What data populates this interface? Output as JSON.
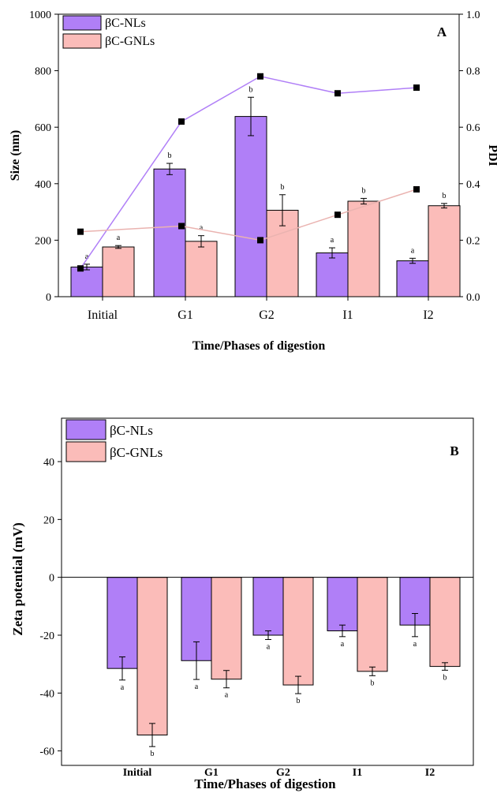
{
  "chart_data": [
    {
      "type": "bar",
      "panel_label": "A",
      "title": "",
      "xlabel": "Time/Phases of digestion",
      "ylabel": "Size (nm)",
      "y2label": "PDI",
      "categories": [
        "Initial",
        "G1",
        "G2",
        "I1",
        "I2"
      ],
      "ylim": [
        0,
        1000
      ],
      "y2lim": [
        0,
        1.0
      ],
      "yticks": [
        "0",
        "200",
        "400",
        "600",
        "800",
        "1000"
      ],
      "y2ticks": [
        "0.0",
        "0.2",
        "0.4",
        "0.6",
        "0.8",
        "1.0"
      ],
      "legend_position": "top-left",
      "series": [
        {
          "name": "βC-NLs",
          "color": "#b07ff7",
          "values": [
            105,
            452,
            638,
            155,
            127
          ],
          "errors": [
            10,
            20,
            68,
            18,
            9
          ],
          "letters": [
            "a",
            "b",
            "b",
            "a",
            "a"
          ]
        },
        {
          "name": "βC-GNLs",
          "color": "#fbbcb9",
          "values": [
            176,
            196,
            306,
            338,
            322
          ],
          "errors": [
            5,
            20,
            55,
            10,
            8
          ],
          "letters": [
            "a",
            "a",
            "b",
            "b",
            "b"
          ]
        }
      ],
      "pdi_lines": [
        {
          "color": "#b07ff7",
          "values": [
            0.1,
            0.62,
            0.78,
            0.72,
            0.74
          ]
        },
        {
          "color": "#eab3b0",
          "values": [
            0.23,
            0.25,
            0.2,
            0.29,
            0.38
          ]
        }
      ]
    },
    {
      "type": "bar",
      "panel_label": "B",
      "title": "",
      "xlabel": "Time/Phases of digestion",
      "ylabel": "Zeta potential (mV)",
      "categories": [
        "Initial",
        "G1",
        "G2",
        "I1",
        "I2"
      ],
      "ylim": [
        -65,
        55
      ],
      "yticks": [
        "-60",
        "-40",
        "-20",
        "0",
        "20",
        "40"
      ],
      "legend_position": "top-left",
      "series": [
        {
          "name": "βC-NLs",
          "color": "#b07ff7",
          "values": [
            -31.5,
            -28.8,
            -20.0,
            -18.5,
            -16.5
          ],
          "errors": [
            4,
            6.5,
            1.5,
            2,
            4
          ],
          "letters": [
            "a",
            "a",
            "a",
            "a",
            "a"
          ]
        },
        {
          "name": "βC-GNLs",
          "color": "#fbbcb9",
          "values": [
            -54.5,
            -35.2,
            -37.2,
            -32.5,
            -30.8
          ],
          "errors": [
            4,
            3,
            3,
            1.5,
            1.3
          ],
          "letters": [
            "b",
            "a",
            "b",
            "b",
            "b"
          ]
        }
      ]
    }
  ]
}
